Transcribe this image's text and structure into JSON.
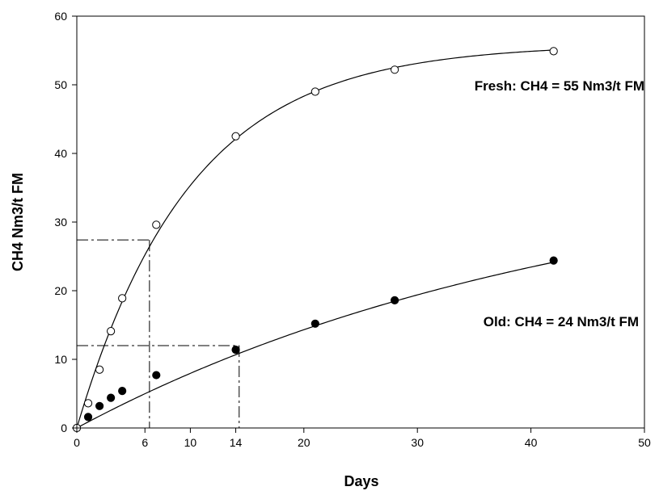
{
  "chart_data": {
    "type": "scatter",
    "xlabel": "Days",
    "ylabel": "CH4 Nm3/t FM",
    "xlim": [
      0,
      50
    ],
    "ylim": [
      0,
      60
    ],
    "xticks": [
      0,
      6,
      10,
      14,
      20,
      30,
      40,
      50
    ],
    "yticks": [
      0,
      10,
      20,
      30,
      40,
      50,
      60
    ],
    "grid": false,
    "series": [
      {
        "marker": "open-circle",
        "x": [
          0,
          1,
          2,
          3,
          4,
          7,
          14,
          21,
          28,
          42
        ],
        "y": [
          0,
          3.6,
          8.5,
          14.1,
          18.9,
          29.6,
          42.5,
          49.0,
          52.2,
          54.9
        ],
        "fit": {
          "asymptote": 55.9,
          "k": 0.1
        }
      },
      {
        "marker": "filled-circle",
        "x": [
          1,
          2,
          3,
          4,
          7,
          14,
          21,
          28,
          42
        ],
        "y": [
          1.6,
          3.2,
          4.4,
          5.4,
          7.7,
          11.4,
          15.2,
          18.6,
          24.4
        ],
        "fit": {
          "asymptote": 39.5,
          "k": 0.0225
        }
      }
    ],
    "reference_lines": [
      {
        "style": "dash-dot",
        "x": 6.4,
        "y": 27.4
      },
      {
        "style": "dash-dot",
        "x": 14.3,
        "y": 12.0
      }
    ],
    "annotations": [
      {
        "text": "Fresh: CH4 = 55 Nm3/t FM"
      },
      {
        "text": "Old: CH4 = 24 Nm3/t FM"
      }
    ]
  }
}
